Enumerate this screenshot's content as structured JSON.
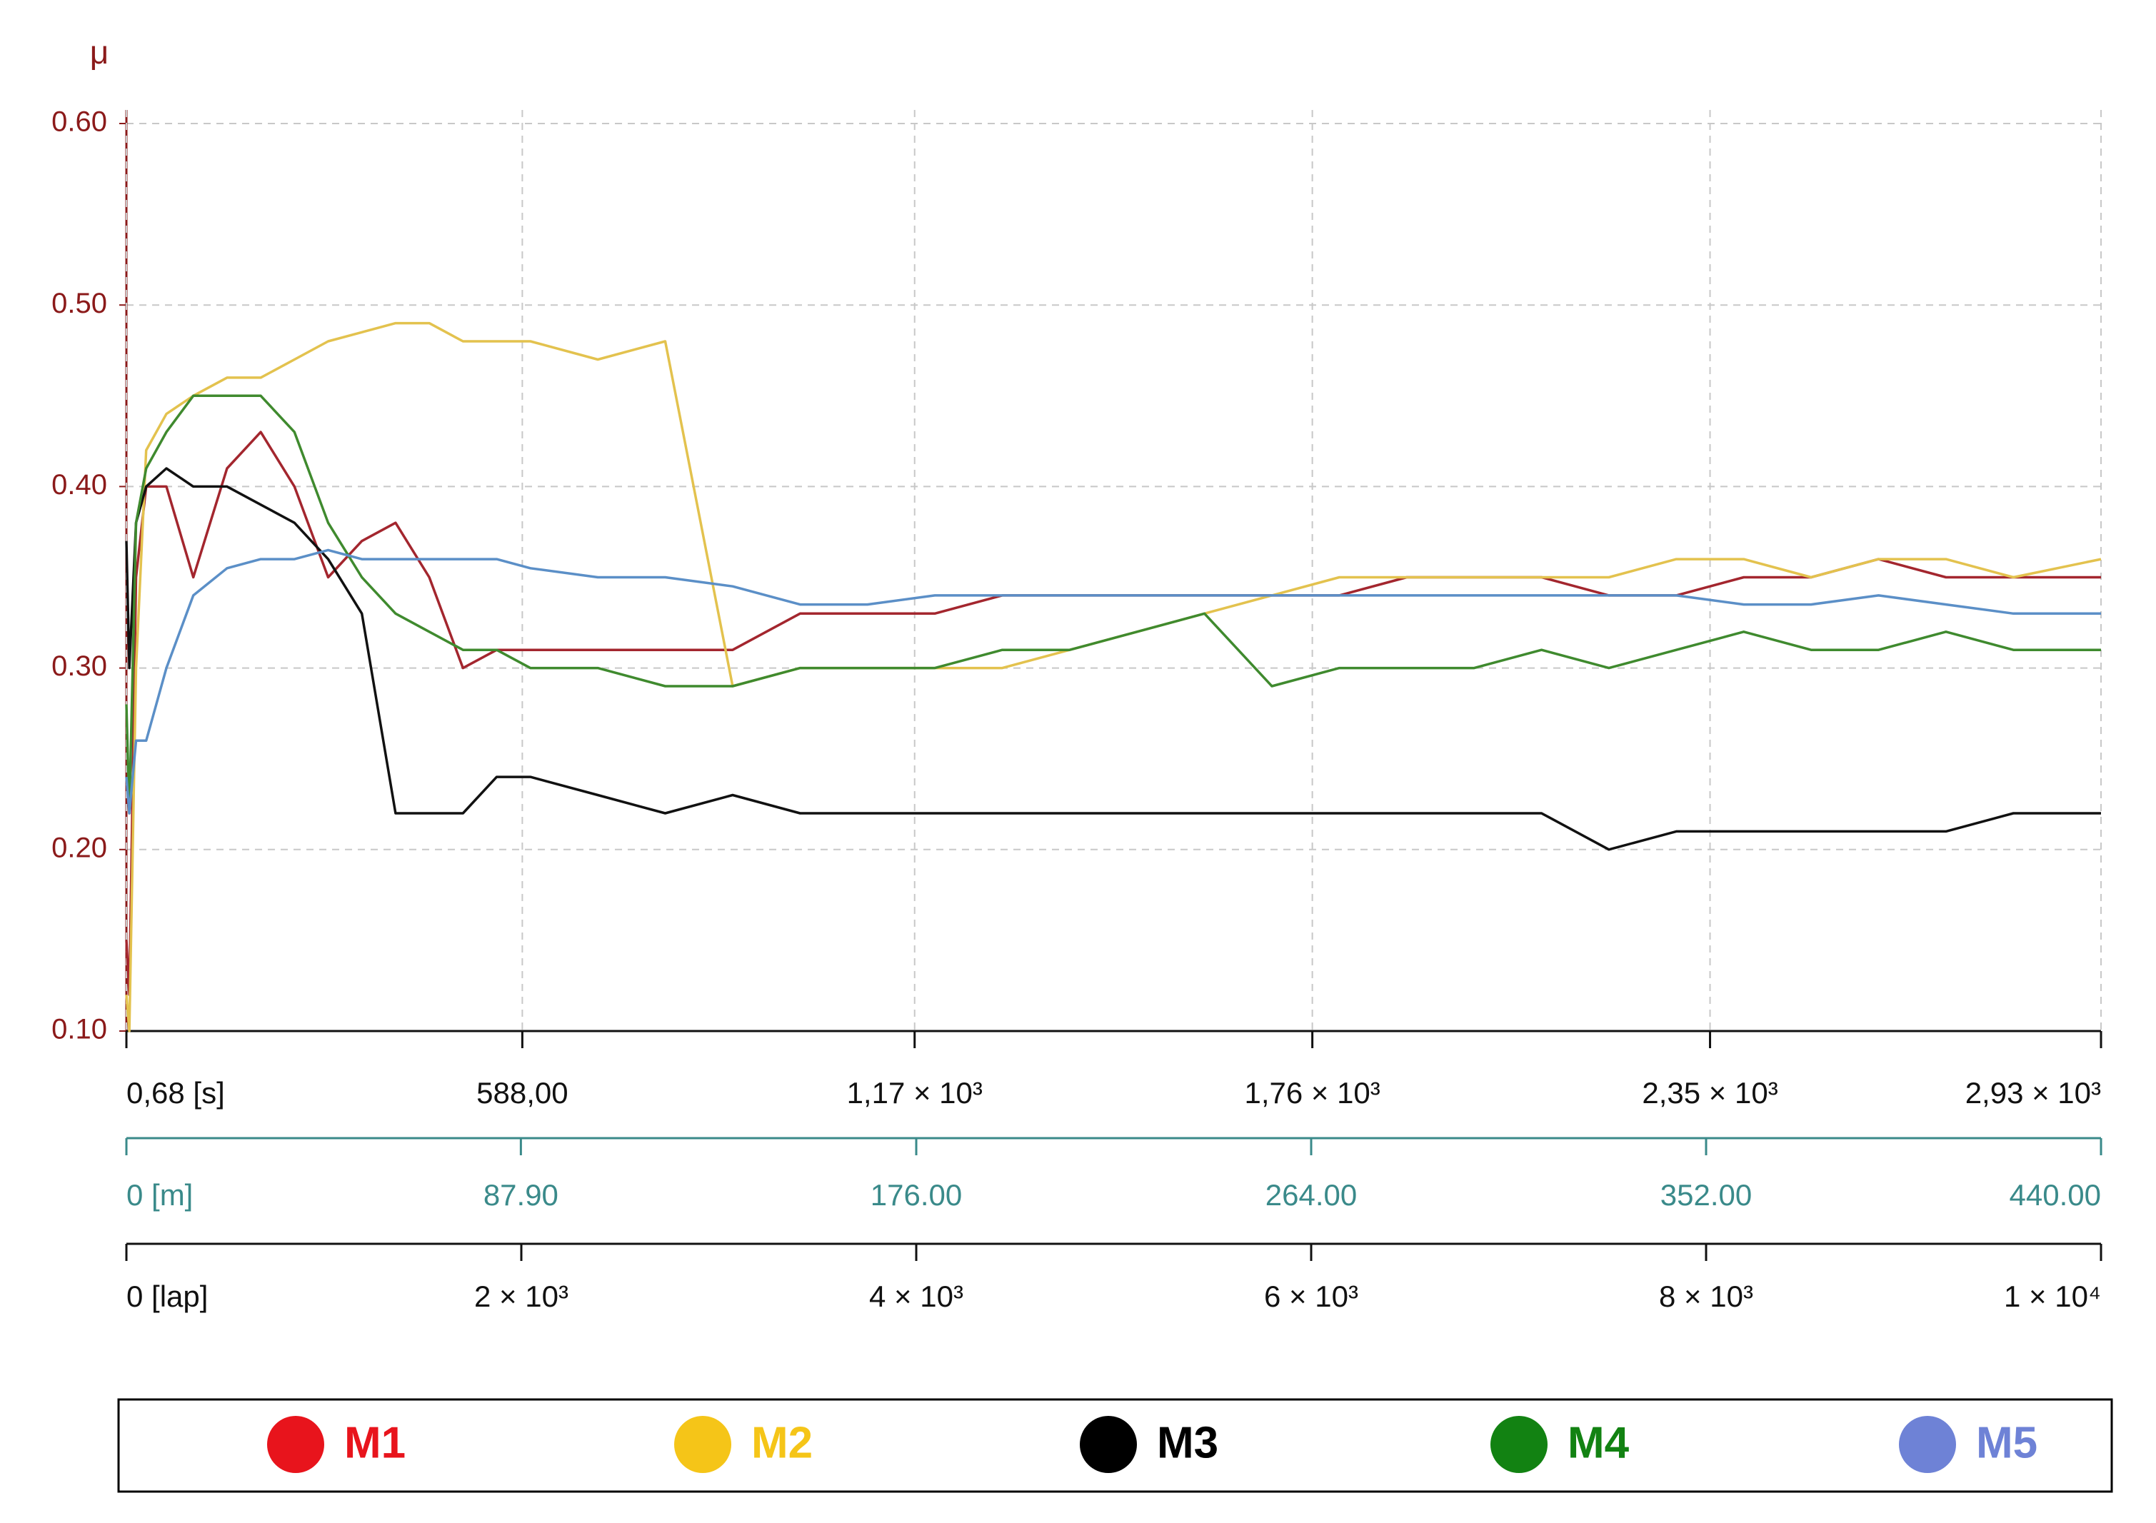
{
  "chart_data": {
    "type": "line",
    "y_label": "μ",
    "x": [
      0.68,
      5,
      15,
      30,
      60,
      100,
      150,
      200,
      250,
      300,
      350,
      400,
      450,
      500,
      550,
      600,
      700,
      800,
      900,
      1000,
      1100,
      1200,
      1300,
      1400,
      1500,
      1600,
      1700,
      1800,
      1900,
      2000,
      2100,
      2200,
      2300,
      2400,
      2500,
      2600,
      2700,
      2800,
      2930
    ],
    "series": [
      {
        "name": "M1",
        "color": "#a3262e",
        "legend_color": "#e8141c",
        "values": [
          0.15,
          0.12,
          0.35,
          0.4,
          0.4,
          0.35,
          0.41,
          0.43,
          0.4,
          0.35,
          0.37,
          0.38,
          0.35,
          0.3,
          0.31,
          0.31,
          0.31,
          0.31,
          0.31,
          0.33,
          0.33,
          0.33,
          0.34,
          0.34,
          0.34,
          0.34,
          0.34,
          0.34,
          0.35,
          0.35,
          0.35,
          0.34,
          0.34,
          0.35,
          0.35,
          0.36,
          0.35,
          0.35,
          0.35
        ]
      },
      {
        "name": "M2",
        "color": "#e3c24e",
        "legend_color": "#f5c518",
        "values": [
          0.12,
          0.1,
          0.3,
          0.42,
          0.44,
          0.45,
          0.46,
          0.46,
          0.47,
          0.48,
          0.485,
          0.49,
          0.49,
          0.48,
          0.48,
          0.48,
          0.47,
          0.48,
          0.29,
          0.3,
          0.3,
          0.3,
          0.3,
          0.31,
          0.32,
          0.33,
          0.34,
          0.35,
          0.35,
          0.35,
          0.35,
          0.35,
          0.36,
          0.36,
          0.35,
          0.36,
          0.36,
          0.35,
          0.36
        ]
      },
      {
        "name": "M3",
        "color": "#111111",
        "legend_color": "#000000",
        "values": [
          0.37,
          0.3,
          0.38,
          0.4,
          0.41,
          0.4,
          0.4,
          0.39,
          0.38,
          0.36,
          0.33,
          0.22,
          0.22,
          0.22,
          0.24,
          0.24,
          0.23,
          0.22,
          0.23,
          0.22,
          0.22,
          0.22,
          0.22,
          0.22,
          0.22,
          0.22,
          0.22,
          0.22,
          0.22,
          0.22,
          0.22,
          0.2,
          0.21,
          0.21,
          0.21,
          0.21,
          0.21,
          0.22,
          0.22
        ]
      },
      {
        "name": "M4",
        "color": "#3f8a2e",
        "legend_color": "#128212",
        "values": [
          0.28,
          0.22,
          0.38,
          0.41,
          0.43,
          0.45,
          0.45,
          0.45,
          0.43,
          0.38,
          0.35,
          0.33,
          0.32,
          0.31,
          0.31,
          0.3,
          0.3,
          0.29,
          0.29,
          0.3,
          0.3,
          0.3,
          0.31,
          0.31,
          0.32,
          0.33,
          0.29,
          0.3,
          0.3,
          0.3,
          0.31,
          0.3,
          0.31,
          0.32,
          0.31,
          0.31,
          0.32,
          0.31,
          0.31
        ]
      },
      {
        "name": "M5",
        "color": "#5b8fc7",
        "legend_color": "#6e82d6",
        "values": [
          0.24,
          0.22,
          0.26,
          0.26,
          0.3,
          0.34,
          0.355,
          0.36,
          0.36,
          0.365,
          0.36,
          0.36,
          0.36,
          0.36,
          0.36,
          0.355,
          0.35,
          0.35,
          0.345,
          0.335,
          0.335,
          0.34,
          0.34,
          0.34,
          0.34,
          0.34,
          0.34,
          0.34,
          0.34,
          0.34,
          0.34,
          0.34,
          0.34,
          0.335,
          0.335,
          0.34,
          0.335,
          0.33,
          0.33
        ]
      }
    ],
    "ylim": [
      0.1,
      0.6
    ],
    "yticks": [
      {
        "value": 0.1,
        "label": "0.10"
      },
      {
        "value": 0.2,
        "label": "0.20"
      },
      {
        "value": 0.3,
        "label": "0.30"
      },
      {
        "value": 0.4,
        "label": "0.40"
      },
      {
        "value": 0.5,
        "label": "0.50"
      },
      {
        "value": 0.6,
        "label": "0.60"
      }
    ],
    "xlim": [
      0.68,
      2930
    ],
    "xticks": [
      {
        "value": 0.68,
        "label": "0,68 [s]"
      },
      {
        "value": 588,
        "label": "588,00"
      },
      {
        "value": 1170,
        "label": "1,17 × 10³"
      },
      {
        "value": 1760,
        "label": "1,76 × 10³"
      },
      {
        "value": 2350,
        "label": "2,35 × 10³"
      },
      {
        "value": 2930,
        "label": "2,93 × 10³"
      }
    ],
    "x2lim": [
      0,
      440
    ],
    "x2ticks": [
      {
        "value": 0,
        "label": "0 [m]"
      },
      {
        "value": 87.9,
        "label": "87.90"
      },
      {
        "value": 176,
        "label": "176.00"
      },
      {
        "value": 264,
        "label": "264.00"
      },
      {
        "value": 352,
        "label": "352.00"
      },
      {
        "value": 440,
        "label": "440.00"
      }
    ],
    "x3lim": [
      0,
      10000
    ],
    "x3ticks": [
      {
        "value": 0,
        "label": "0 [lap]"
      },
      {
        "value": 2000,
        "label": "2 × 10³"
      },
      {
        "value": 4000,
        "label": "4 × 10³"
      },
      {
        "value": 6000,
        "label": "6 × 10³"
      },
      {
        "value": 8000,
        "label": "8 × 10³"
      },
      {
        "value": 10000,
        "label": "1 × 10⁴"
      }
    ],
    "grid": true
  }
}
